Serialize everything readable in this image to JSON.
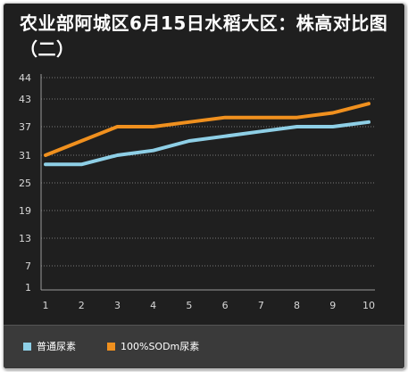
{
  "chart_data": {
    "type": "line",
    "title": "农业部阿城区6月15日水稻大区：株高对比图（二）",
    "x": [
      1,
      2,
      3,
      4,
      5,
      6,
      7,
      8,
      9,
      10
    ],
    "x_tick_labels": [
      "1",
      "2",
      "3",
      "4",
      "5",
      "6",
      "7",
      "8",
      "9",
      "10"
    ],
    "y_tick_labels": [
      "1",
      "7",
      "13",
      "19",
      "25",
      "31",
      "37",
      "43",
      "44"
    ],
    "series": [
      {
        "name": "普通尿素",
        "color": "#8ecfe6",
        "values": [
          29,
          29,
          31,
          32,
          34,
          35,
          36,
          37,
          37,
          38
        ]
      },
      {
        "name": "100%SODm尿素",
        "color": "#f0901e",
        "values": [
          31,
          34,
          37,
          37,
          38,
          39,
          39,
          39,
          40,
          42
        ]
      }
    ],
    "grid": true,
    "legend_position": "bottom"
  }
}
